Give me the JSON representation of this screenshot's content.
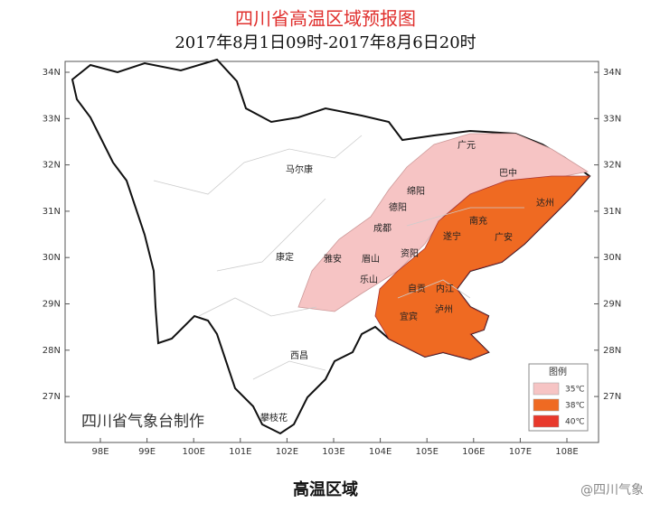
{
  "header": {
    "title": "四川省高温区域预报图",
    "subtitle": "2017年8月1日09时-2017年8月6日20时"
  },
  "map": {
    "lat_labels": [
      "34N",
      "33N",
      "32N",
      "31N",
      "30N",
      "29N",
      "28N",
      "27N"
    ],
    "lon_labels": [
      "98E",
      "99E",
      "100E",
      "101E",
      "102E",
      "103E",
      "104E",
      "105E",
      "106E",
      "107E",
      "108E"
    ],
    "cities": [
      "马尔康",
      "广元",
      "巴中",
      "绵阳",
      "德阳",
      "达州",
      "南充",
      "成都",
      "遂宁",
      "广安",
      "雅安",
      "眉山",
      "资阳",
      "康定",
      "乐山",
      "自贡",
      "内江",
      "宜宾",
      "泸州",
      "西昌",
      "攀枝花"
    ],
    "credit": "四川省气象台制作",
    "legend": {
      "title": "图例",
      "items": [
        {
          "name": "35℃",
          "color": "#f6c4c4"
        },
        {
          "name": "38℃",
          "color": "#ef6a22"
        },
        {
          "name": "40℃",
          "color": "#e8382b"
        }
      ]
    }
  },
  "caption": "高温区域",
  "watermark": "@四川气象"
}
